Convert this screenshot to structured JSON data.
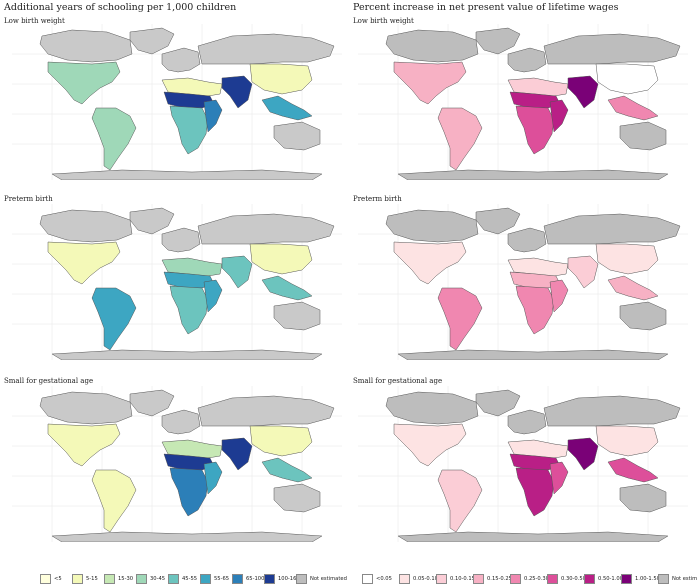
{
  "left_title": "Additional years of schooling per 1,000 children",
  "right_title": "Percent increase in net present value of lifetime wages",
  "panels": {
    "row1": "Low birth weight",
    "row2": "Preterm birth",
    "row3": "Small for gestational age"
  },
  "colors": {
    "land_default": "#c9c9c9",
    "border": "#555555",
    "ocean": "#ffffff",
    "grid": "#e6e6e6"
  },
  "left_legend": [
    {
      "label": "<5",
      "color": "#ffffdd"
    },
    {
      "label": "5-15",
      "color": "#f4f9b8"
    },
    {
      "label": "15-30",
      "color": "#c6e8b4"
    },
    {
      "label": "30-45",
      "color": "#9fd8b8"
    },
    {
      "label": "45-55",
      "color": "#6cc4be"
    },
    {
      "label": "55-65",
      "color": "#3da6c2"
    },
    {
      "label": "65-100",
      "color": "#2c7fb8"
    },
    {
      "label": "100-160",
      "color": "#1d3b92"
    },
    {
      "label": "Not estimated",
      "color": "#bdbdbd"
    }
  ],
  "right_legend": [
    {
      "label": "<0.05",
      "color": "#ffffff"
    },
    {
      "label": "0.05-0.10",
      "color": "#fde3e3"
    },
    {
      "label": "0.10-0.15",
      "color": "#fbcdd6"
    },
    {
      "label": "0.15-0.25",
      "color": "#f7b1c4"
    },
    {
      "label": "0.25-0.30",
      "color": "#f087b0"
    },
    {
      "label": "0.30-0.50",
      "color": "#dd4f9a"
    },
    {
      "label": "0.50-1.00",
      "color": "#b91f86"
    },
    {
      "label": "1.00-1.50",
      "color": "#7a0177"
    },
    {
      "label": "Not estim",
      "color": "#bdbdbd"
    }
  ],
  "map_fills": {
    "left": {
      "row1": {
        "na": 3,
        "sa": 3,
        "eu": 9,
        "ru": 9,
        "mena": 1,
        "sahel": 7,
        "africa": 4,
        "easafr": 6,
        "sasia": 7,
        "easia": 1,
        "sea": 5,
        "aus": 9,
        "grn": 9,
        "ant": 9,
        "can": 9
      },
      "row2": {
        "na": 1,
        "sa": 5,
        "eu": 9,
        "ru": 9,
        "mena": 3,
        "sahel": 5,
        "africa": 4,
        "easafr": 5,
        "sasia": 4,
        "easia": 1,
        "sea": 4,
        "aus": 9,
        "grn": 9,
        "ant": 9,
        "can": 9
      },
      "row3": {
        "na": 1,
        "sa": 1,
        "eu": 9,
        "ru": 9,
        "mena": 2,
        "sahel": 7,
        "africa": 6,
        "easafr": 5,
        "sasia": 7,
        "easia": 1,
        "sea": 4,
        "aus": 9,
        "grn": 9,
        "ant": 9,
        "can": 9
      }
    },
    "right": {
      "row1": {
        "na": 3,
        "sa": 3,
        "eu": 8,
        "ru": 8,
        "mena": 2,
        "sahel": 6,
        "africa": 5,
        "easafr": 6,
        "sasia": 7,
        "easia": 0,
        "sea": 4,
        "aus": 8,
        "grn": 8,
        "ant": 8,
        "can": 8
      },
      "row2": {
        "na": 1,
        "sa": 4,
        "eu": 8,
        "ru": 8,
        "mena": 1,
        "sahel": 3,
        "africa": 4,
        "easafr": 4,
        "sasia": 2,
        "easia": 1,
        "sea": 3,
        "aus": 8,
        "grn": 8,
        "ant": 8,
        "can": 8
      },
      "row3": {
        "na": 1,
        "sa": 2,
        "eu": 8,
        "ru": 8,
        "mena": 1,
        "sahel": 6,
        "africa": 6,
        "easafr": 5,
        "sasia": 7,
        "easia": 1,
        "sea": 5,
        "aus": 8,
        "grn": 8,
        "ant": 8,
        "can": 8
      }
    }
  }
}
